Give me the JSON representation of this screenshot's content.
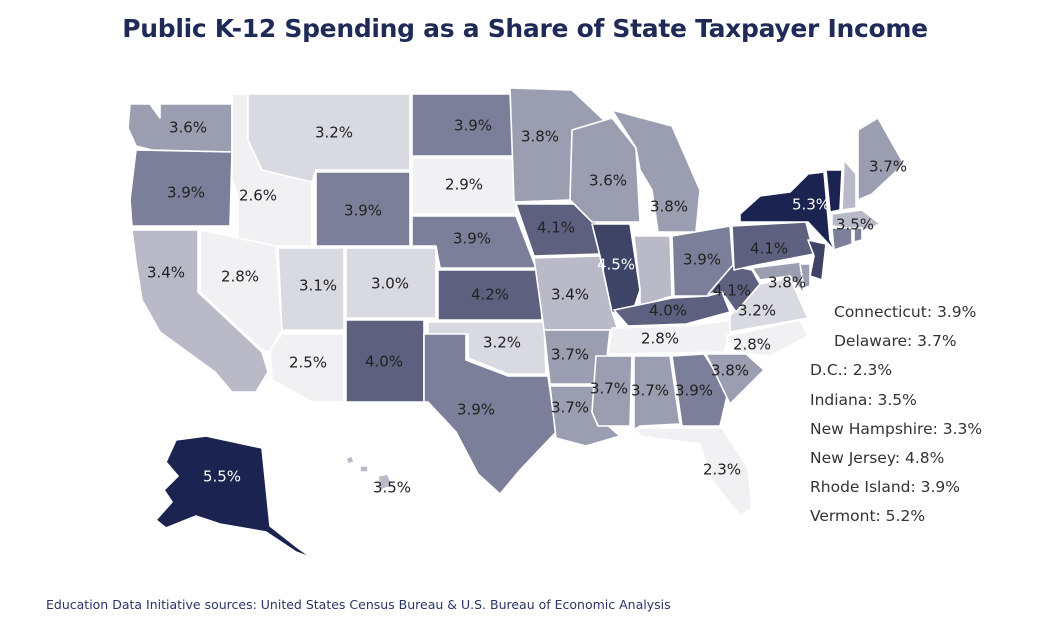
{
  "title": "Public K-12 Spending as a Share of State Taxpayer Income",
  "source": "Education Data Initiative sources: United States Census Bureau & U.S. Bureau of Economic Analysis",
  "colors": {
    "lightest": "#f1f1f4",
    "light": "#d9d9e1",
    "mid_light": "#b9b9c8",
    "mid": "#9b9db0",
    "mid_dark": "#7c7f99",
    "dark": "#5d617f",
    "darker": "#3d4466",
    "darkest": "#1b2450",
    "label_dark": "#222222",
    "label_light": "#ffffff"
  },
  "states": [
    {
      "id": "WA",
      "value": "3.6%"
    },
    {
      "id": "OR",
      "value": "3.9%"
    },
    {
      "id": "CA",
      "value": "3.4%"
    },
    {
      "id": "ID",
      "value": "2.6%"
    },
    {
      "id": "NV",
      "value": "2.8%"
    },
    {
      "id": "AZ",
      "value": "2.5%"
    },
    {
      "id": "MT",
      "value": "3.2%"
    },
    {
      "id": "WY",
      "value": "3.9%"
    },
    {
      "id": "UT",
      "value": "3.1%"
    },
    {
      "id": "CO",
      "value": "3.0%"
    },
    {
      "id": "NM",
      "value": "4.0%"
    },
    {
      "id": "ND",
      "value": "3.9%"
    },
    {
      "id": "SD",
      "value": "2.9%"
    },
    {
      "id": "NE",
      "value": "3.9%"
    },
    {
      "id": "KS",
      "value": "4.2%"
    },
    {
      "id": "OK",
      "value": "3.2%"
    },
    {
      "id": "TX",
      "value": "3.9%"
    },
    {
      "id": "MN",
      "value": "3.8%"
    },
    {
      "id": "IA",
      "value": "4.1%"
    },
    {
      "id": "MO",
      "value": "3.4%"
    },
    {
      "id": "AR",
      "value": "3.7%"
    },
    {
      "id": "LA",
      "value": "3.7%"
    },
    {
      "id": "WI",
      "value": "3.6%"
    },
    {
      "id": "IL",
      "value": "4.5%"
    },
    {
      "id": "MI",
      "value": "3.8%"
    },
    {
      "id": "IN",
      "value": ""
    },
    {
      "id": "OH",
      "value": "3.9%"
    },
    {
      "id": "KY",
      "value": "4.0%"
    },
    {
      "id": "TN",
      "value": "2.8%"
    },
    {
      "id": "MS",
      "value": "3.7%"
    },
    {
      "id": "AL",
      "value": "3.7%"
    },
    {
      "id": "GA",
      "value": "3.9%"
    },
    {
      "id": "FL",
      "value": "2.3%"
    },
    {
      "id": "SC",
      "value": "3.8%"
    },
    {
      "id": "NC",
      "value": "2.8%"
    },
    {
      "id": "VA",
      "value": "3.2%"
    },
    {
      "id": "WV",
      "value": "4.1%"
    },
    {
      "id": "MD",
      "value": "3.8%"
    },
    {
      "id": "PA",
      "value": "4.1%"
    },
    {
      "id": "NY",
      "value": "5.3%"
    },
    {
      "id": "NJ",
      "value": ""
    },
    {
      "id": "VT",
      "value": ""
    },
    {
      "id": "NH",
      "value": ""
    },
    {
      "id": "ME",
      "value": "3.7%"
    },
    {
      "id": "MA",
      "value": "3.5%"
    },
    {
      "id": "CT",
      "value": ""
    },
    {
      "id": "RI",
      "value": ""
    },
    {
      "id": "DE",
      "value": ""
    },
    {
      "id": "AK",
      "value": "5.5%"
    },
    {
      "id": "HI",
      "value": "3.5%"
    }
  ],
  "side_labels": [
    "Connecticut: 3.9%",
    "Delaware: 3.7%",
    "D.C.: 2.3%",
    "Indiana: 3.5%",
    "New Hampshire: 3.3%",
    "New Jersey: 4.8%",
    "Rhode Island: 3.9%",
    "Vermont: 5.2%"
  ]
}
